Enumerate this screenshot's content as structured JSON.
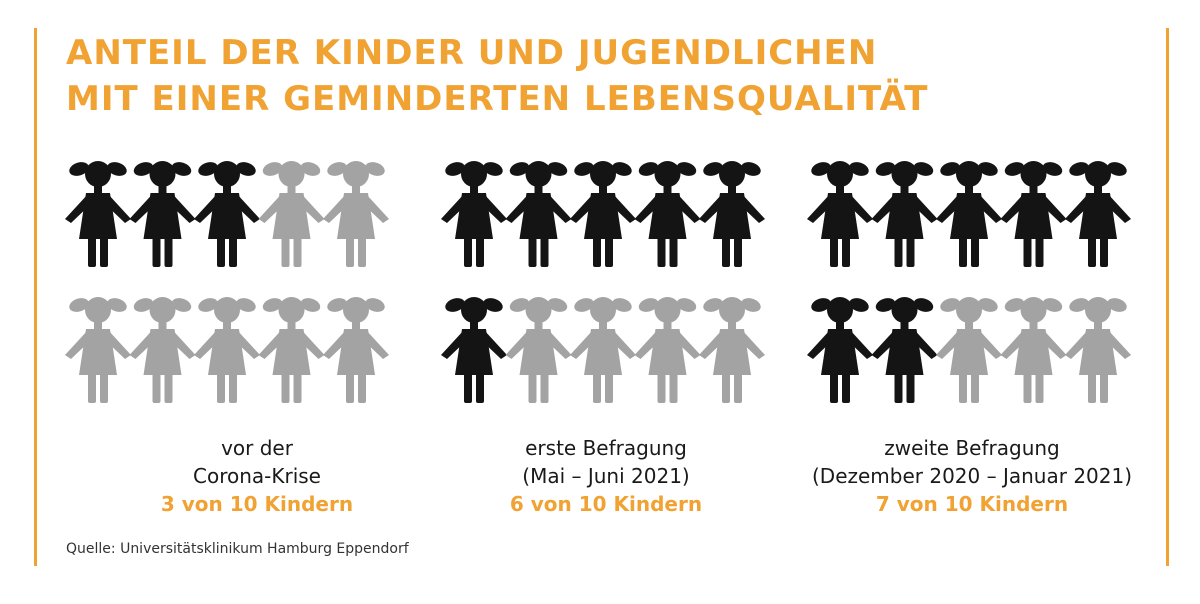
{
  "title": {
    "line1": "ANTEIL DER KINDER UND JUGENDLICHEN",
    "line2": "MIT EINER GEMINDERTEN LEBENSQUALITÄT"
  },
  "colors": {
    "accent": "#f0a233",
    "affected": "#141414",
    "unaffected": "#a3a3a3"
  },
  "chart_data": {
    "type": "pictogram",
    "unit": "Kinder",
    "total": 10,
    "groups": [
      {
        "label_line1": "vor der",
        "label_line2": "Corona-Krise",
        "count_label": "3 von 10 Kindern",
        "affected": 3
      },
      {
        "label_line1": "erste Befragung",
        "label_line2": "(Mai – Juni 2021)",
        "count_label": "6 von 10 Kindern",
        "affected": 6
      },
      {
        "label_line1": "zweite Befragung",
        "label_line2": "(Dezember 2020 – Januar 2021)",
        "count_label": "7 von 10 Kindern",
        "affected": 7
      }
    ]
  },
  "source": "Quelle: Universitätsklinikum Hamburg Eppendorf"
}
